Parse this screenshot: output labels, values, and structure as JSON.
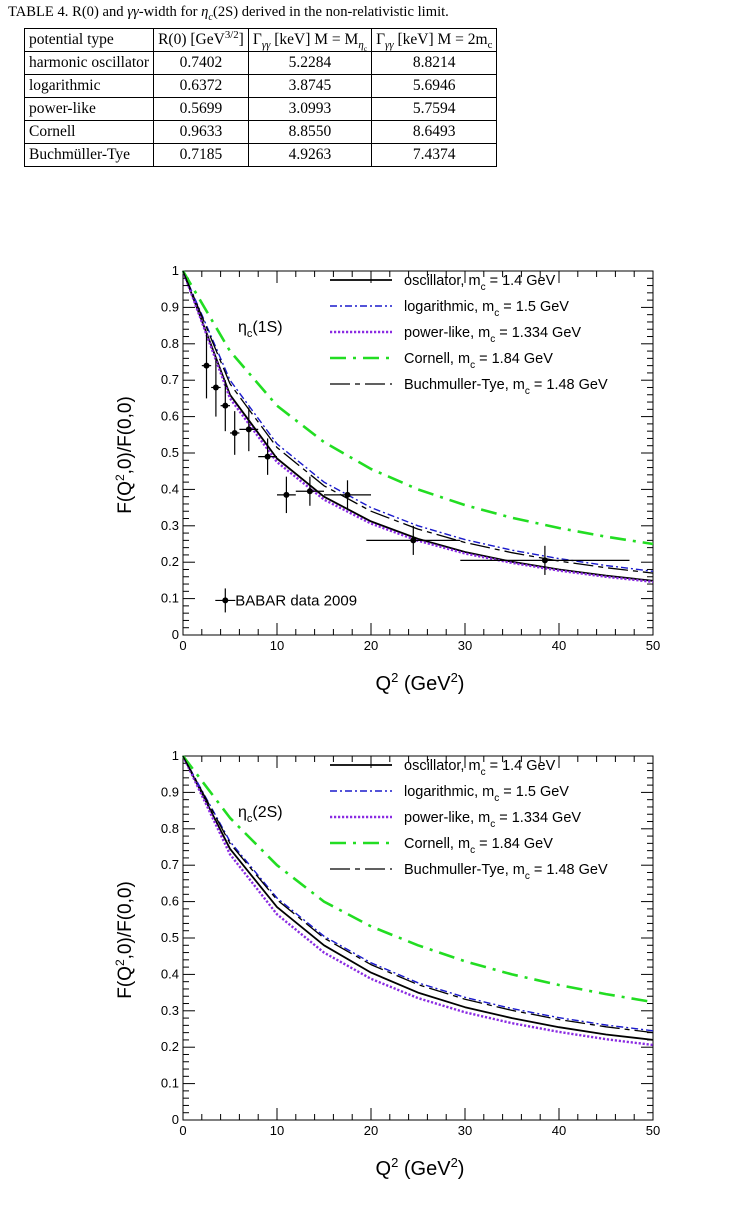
{
  "caption": {
    "lead": "TABLE 4.  R(0) and ",
    "gg": "γγ",
    "mid": "-width for ",
    "eta": "η",
    "eta_sub": "c",
    "tail": "(2S) derived in the non-relativistic limit."
  },
  "table": {
    "headers": [
      "potential type",
      "R(0) [GeV",
      "3/2",
      "]",
      "Γ",
      "γγ",
      " [keV] M = M",
      "η",
      "c",
      "Γ",
      "γγ",
      " [keV] M = 2m",
      "c"
    ],
    "rows": [
      [
        "harmonic oscillator",
        "0.7402",
        "5.2284",
        "8.8214"
      ],
      [
        "logarithmic",
        "0.6372",
        "3.8745",
        "5.6946"
      ],
      [
        "power-like",
        "0.5699",
        "3.0993",
        "5.7594"
      ],
      [
        "Cornell",
        "0.9633",
        "8.8550",
        "8.6493"
      ],
      [
        "Buchmüller-Tye",
        "0.7185",
        "4.9263",
        "7.4374"
      ]
    ]
  },
  "colors": {
    "oscillator": "#000000",
    "logarithmic": "#1a1acc",
    "power": "#8a2be2",
    "cornell": "#22dd22",
    "bt": "#000000",
    "data": "#000000"
  },
  "chart_data": [
    {
      "type": "line",
      "label": "ηc(1S)",
      "xlabel": "Q2 (GeV2)",
      "ylabel": "F(Q2,0)/F(0,0)",
      "xlim": [
        0,
        50
      ],
      "ylim": [
        0,
        1
      ],
      "xticks": [
        0,
        10,
        20,
        30,
        40,
        50
      ],
      "yticks": [
        0,
        0.1,
        0.2,
        0.3,
        0.4,
        0.5,
        0.6,
        0.7,
        0.8,
        0.9,
        1
      ],
      "legend_position": "top-right",
      "series": [
        {
          "name": "oscillator, m_c = 1.4 GeV",
          "style": "solid",
          "x": [
            0,
            5,
            10,
            15,
            20,
            25,
            30,
            35,
            40,
            45,
            50
          ],
          "y": [
            1.0,
            0.66,
            0.485,
            0.38,
            0.312,
            0.264,
            0.228,
            0.201,
            0.18,
            0.163,
            0.149
          ]
        },
        {
          "name": "logarithmic, m_c = 1.5 GeV",
          "style": "dashdot",
          "x": [
            0,
            5,
            10,
            15,
            20,
            25,
            30,
            35,
            40,
            45,
            50
          ],
          "y": [
            1.0,
            0.7,
            0.525,
            0.42,
            0.35,
            0.3,
            0.262,
            0.233,
            0.21,
            0.191,
            0.175
          ]
        },
        {
          "name": "power-like, m_c = 1.334 GeV",
          "style": "dotted",
          "x": [
            0,
            5,
            10,
            15,
            20,
            25,
            30,
            35,
            40,
            45,
            50
          ],
          "y": [
            1.0,
            0.65,
            0.475,
            0.372,
            0.306,
            0.259,
            0.224,
            0.198,
            0.177,
            0.16,
            0.146
          ]
        },
        {
          "name": "Cornell, m_c = 1.84 GeV",
          "style": "longdash",
          "x": [
            0,
            5,
            10,
            15,
            20,
            25,
            30,
            35,
            40,
            45,
            50
          ],
          "y": [
            1.0,
            0.78,
            0.63,
            0.53,
            0.456,
            0.4,
            0.357,
            0.322,
            0.294,
            0.27,
            0.25
          ]
        },
        {
          "name": "Buchmuller-Tye, m_c = 1.48 GeV",
          "style": "bt",
          "x": [
            0,
            5,
            10,
            15,
            20,
            25,
            30,
            35,
            40,
            45,
            50
          ],
          "y": [
            1.0,
            0.69,
            0.515,
            0.41,
            0.34,
            0.291,
            0.254,
            0.226,
            0.203,
            0.185,
            0.17
          ]
        }
      ],
      "points": {
        "name": "BABAR data 2009",
        "x": [
          2.5,
          3.5,
          4.5,
          5.5,
          7.0,
          9.0,
          11.0,
          13.5,
          17.5,
          24.5,
          38.5
        ],
        "y": [
          0.74,
          0.68,
          0.63,
          0.555,
          0.565,
          0.49,
          0.385,
          0.395,
          0.385,
          0.26,
          0.205
        ],
        "xerr": [
          0.5,
          0.5,
          0.5,
          0.5,
          1.0,
          1.0,
          1.0,
          1.5,
          2.5,
          5.0,
          9.0
        ],
        "yerr": [
          0.09,
          0.08,
          0.07,
          0.06,
          0.06,
          0.05,
          0.05,
          0.04,
          0.04,
          0.04,
          0.04
        ]
      }
    },
    {
      "type": "line",
      "label": "ηc(2S)",
      "xlabel": "Q2 (GeV2)",
      "ylabel": "F(Q2,0)/F(0,0)",
      "xlim": [
        0,
        50
      ],
      "ylim": [
        0,
        1
      ],
      "xticks": [
        0,
        10,
        20,
        30,
        40,
        50
      ],
      "yticks": [
        0,
        0.1,
        0.2,
        0.3,
        0.4,
        0.5,
        0.6,
        0.7,
        0.8,
        0.9,
        1
      ],
      "legend_position": "top-right",
      "series": [
        {
          "name": "oscillator, m_c = 1.4 GeV",
          "style": "solid",
          "x": [
            0,
            5,
            10,
            15,
            20,
            25,
            30,
            35,
            40,
            45,
            50
          ],
          "y": [
            1.0,
            0.745,
            0.585,
            0.48,
            0.405,
            0.35,
            0.31,
            0.28,
            0.255,
            0.235,
            0.22
          ]
        },
        {
          "name": "logarithmic, m_c = 1.5 GeV",
          "style": "dashdot",
          "x": [
            0,
            5,
            10,
            15,
            20,
            25,
            30,
            35,
            40,
            45,
            50
          ],
          "y": [
            1.0,
            0.765,
            0.61,
            0.505,
            0.432,
            0.377,
            0.337,
            0.306,
            0.281,
            0.261,
            0.245
          ]
        },
        {
          "name": "power-like, m_c = 1.334 GeV",
          "style": "dotted",
          "x": [
            0,
            5,
            10,
            15,
            20,
            25,
            30,
            35,
            40,
            45,
            50
          ],
          "y": [
            1.0,
            0.73,
            0.565,
            0.46,
            0.388,
            0.335,
            0.296,
            0.266,
            0.242,
            0.222,
            0.206
          ]
        },
        {
          "name": "Cornell, m_c = 1.84 GeV",
          "style": "longdash",
          "x": [
            0,
            5,
            10,
            15,
            20,
            25,
            30,
            35,
            40,
            45,
            50
          ],
          "y": [
            1.0,
            0.83,
            0.7,
            0.6,
            0.532,
            0.48,
            0.436,
            0.4,
            0.371,
            0.346,
            0.324
          ]
        },
        {
          "name": "Buchmuller-Tye, m_c = 1.48 GeV",
          "style": "bt",
          "x": [
            0,
            5,
            10,
            15,
            20,
            25,
            30,
            35,
            40,
            45,
            50
          ],
          "y": [
            1.0,
            0.76,
            0.605,
            0.5,
            0.427,
            0.372,
            0.332,
            0.301,
            0.276,
            0.256,
            0.24
          ]
        }
      ]
    }
  ]
}
